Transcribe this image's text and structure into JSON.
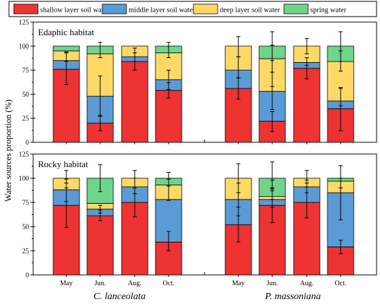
{
  "chart_data": {
    "type": "bar",
    "stacked": true,
    "ylabel": "Water sources proportion (%)",
    "ylim": [
      0,
      125
    ],
    "yticks": [
      0,
      25,
      50,
      75,
      100,
      125
    ],
    "legend_placement": "top",
    "legend": [
      {
        "name": "shallow layer soil water",
        "color": "#ee3333"
      },
      {
        "name": "middle layer soil water",
        "color": "#5b9bd5"
      },
      {
        "name": "deep layer soil water",
        "color": "#ffd966"
      },
      {
        "name": "spring water",
        "color": "#70d48c"
      }
    ],
    "species": [
      "C. lanceolata",
      "P. massoniana"
    ],
    "months": [
      "May",
      "Jun.",
      "Aug.",
      "Oct."
    ],
    "panels": [
      {
        "title": "Edaphic habitat",
        "groups": [
          {
            "species": "C. lanceolata",
            "bars": [
              {
                "month": "May",
                "values": [
                  76,
                  9,
                  10,
                  5
                ],
                "errors": [
                  [
                    60,
                    93
                  ],
                  [
                    84,
                    94
                  ]
                ]
              },
              {
                "month": "Jun.",
                "values": [
                  20,
                  28,
                  44,
                  8
                ],
                "errors": [
                  [
                    12,
                    28
                  ],
                  [
                    27,
                    69
                  ],
                  [
                    88,
                    104
                  ]
                ]
              },
              {
                "month": "Aug.",
                "values": [
                  84,
                  5,
                  11,
                  0
                ],
                "errors": [
                  [
                    75,
                    93
                  ],
                  [
                    84,
                    98
                  ]
                ]
              },
              {
                "month": "Oct.",
                "values": [
                  54,
                  11,
                  28,
                  7
                ],
                "errors": [
                  [
                    46,
                    62
                  ],
                  [
                    55,
                    75
                  ],
                  [
                    88,
                    104
                  ]
                ]
              }
            ]
          },
          {
            "species": "P. massoniana",
            "bars": [
              {
                "month": "May",
                "values": [
                  56,
                  19,
                  25,
                  0
                ],
                "errors": [
                  [
                    45,
                    67
                  ],
                  [
                    67,
                    89
                  ],
                  [
                    89,
                    110
                  ]
                ]
              },
              {
                "month": "Jun.",
                "values": [
                  22,
                  31,
                  34,
                  13
                ],
                "errors": [
                  [
                    11,
                    32
                  ],
                  [
                    34,
                    73
                  ],
                  [
                    58,
                    115
                  ],
                  [
                    85,
                    101
                  ]
                ]
              },
              {
                "month": "Aug.",
                "values": [
                  77,
                  6,
                  17,
                  0
                ],
                "errors": [
                  [
                    66,
                    88
                  ],
                  [
                    80,
                    88
                  ],
                  [
                    92,
                    108
                  ]
                ]
              },
              {
                "month": "Oct.",
                "values": [
                  35,
                  8,
                  41,
                  16
                ],
                "errors": [
                  [
                    12,
                    56
                  ],
                  [
                    38,
                    57
                  ],
                  [
                    74,
                    95
                  ],
                  [
                    84,
                    115
                  ]
                ]
              }
            ]
          }
        ]
      },
      {
        "title": "Rocky habitat",
        "groups": [
          {
            "species": "C. lanceolata",
            "bars": [
              {
                "month": "May",
                "values": [
                  72,
                  16,
                  12,
                  0
                ],
                "errors": [
                  [
                    49,
                    95
                  ],
                  [
                    76,
                    99
                  ],
                  [
                    90,
                    108
                  ]
                ]
              },
              {
                "month": "Jun.",
                "values": [
                  61,
                  7,
                  6,
                  26
                ],
                "errors": [
                  [
                    56,
                    67
                  ],
                  [
                    64,
                    72
                  ],
                  [
                    86,
                    114
                  ]
                ]
              },
              {
                "month": "Aug.",
                "values": [
                  75,
                  16,
                  9,
                  0
                ],
                "errors": [
                  [
                    60,
                    90
                  ],
                  [
                    84,
                    100
                  ],
                  [
                    90,
                    108
                  ]
                ]
              },
              {
                "month": "Oct.",
                "values": [
                  34,
                  44,
                  15,
                  7
                ],
                "errors": [
                  [
                    25,
                    45
                  ],
                  [
                    77,
                    99
                  ],
                  [
                    92,
                    106
                  ]
                ]
              }
            ]
          },
          {
            "species": "P. massoniana",
            "bars": [
              {
                "month": "May",
                "values": [
                  52,
                  26,
                  22,
                  0
                ],
                "errors": [
                  [
                    34,
                    70
                  ],
                  [
                    61,
                    95
                  ],
                  [
                    85,
                    115
                  ]
                ]
              },
              {
                "month": "Jun.",
                "values": [
                  72,
                  6,
                  3,
                  19
                ],
                "errors": [
                  [
                    54,
                    90
                  ],
                  [
                    70,
                    98
                  ],
                  [
                    78,
                    87
                  ],
                  [
                    89,
                    117
                  ]
                ]
              },
              {
                "month": "Aug.",
                "values": [
                  75,
                  16,
                  9,
                  0
                ],
                "errors": [
                  [
                    59,
                    91
                  ],
                  [
                    85,
                    98
                  ],
                  [
                    95,
                    108
                  ]
                ]
              },
              {
                "month": "Oct.",
                "values": [
                  29,
                  56,
                  12,
                  3
                ],
                "errors": [
                  [
                    22,
                    36
                  ],
                  [
                    57,
                    113
                  ],
                  [
                    90,
                    100
                  ]
                ]
              }
            ]
          }
        ]
      }
    ]
  }
}
